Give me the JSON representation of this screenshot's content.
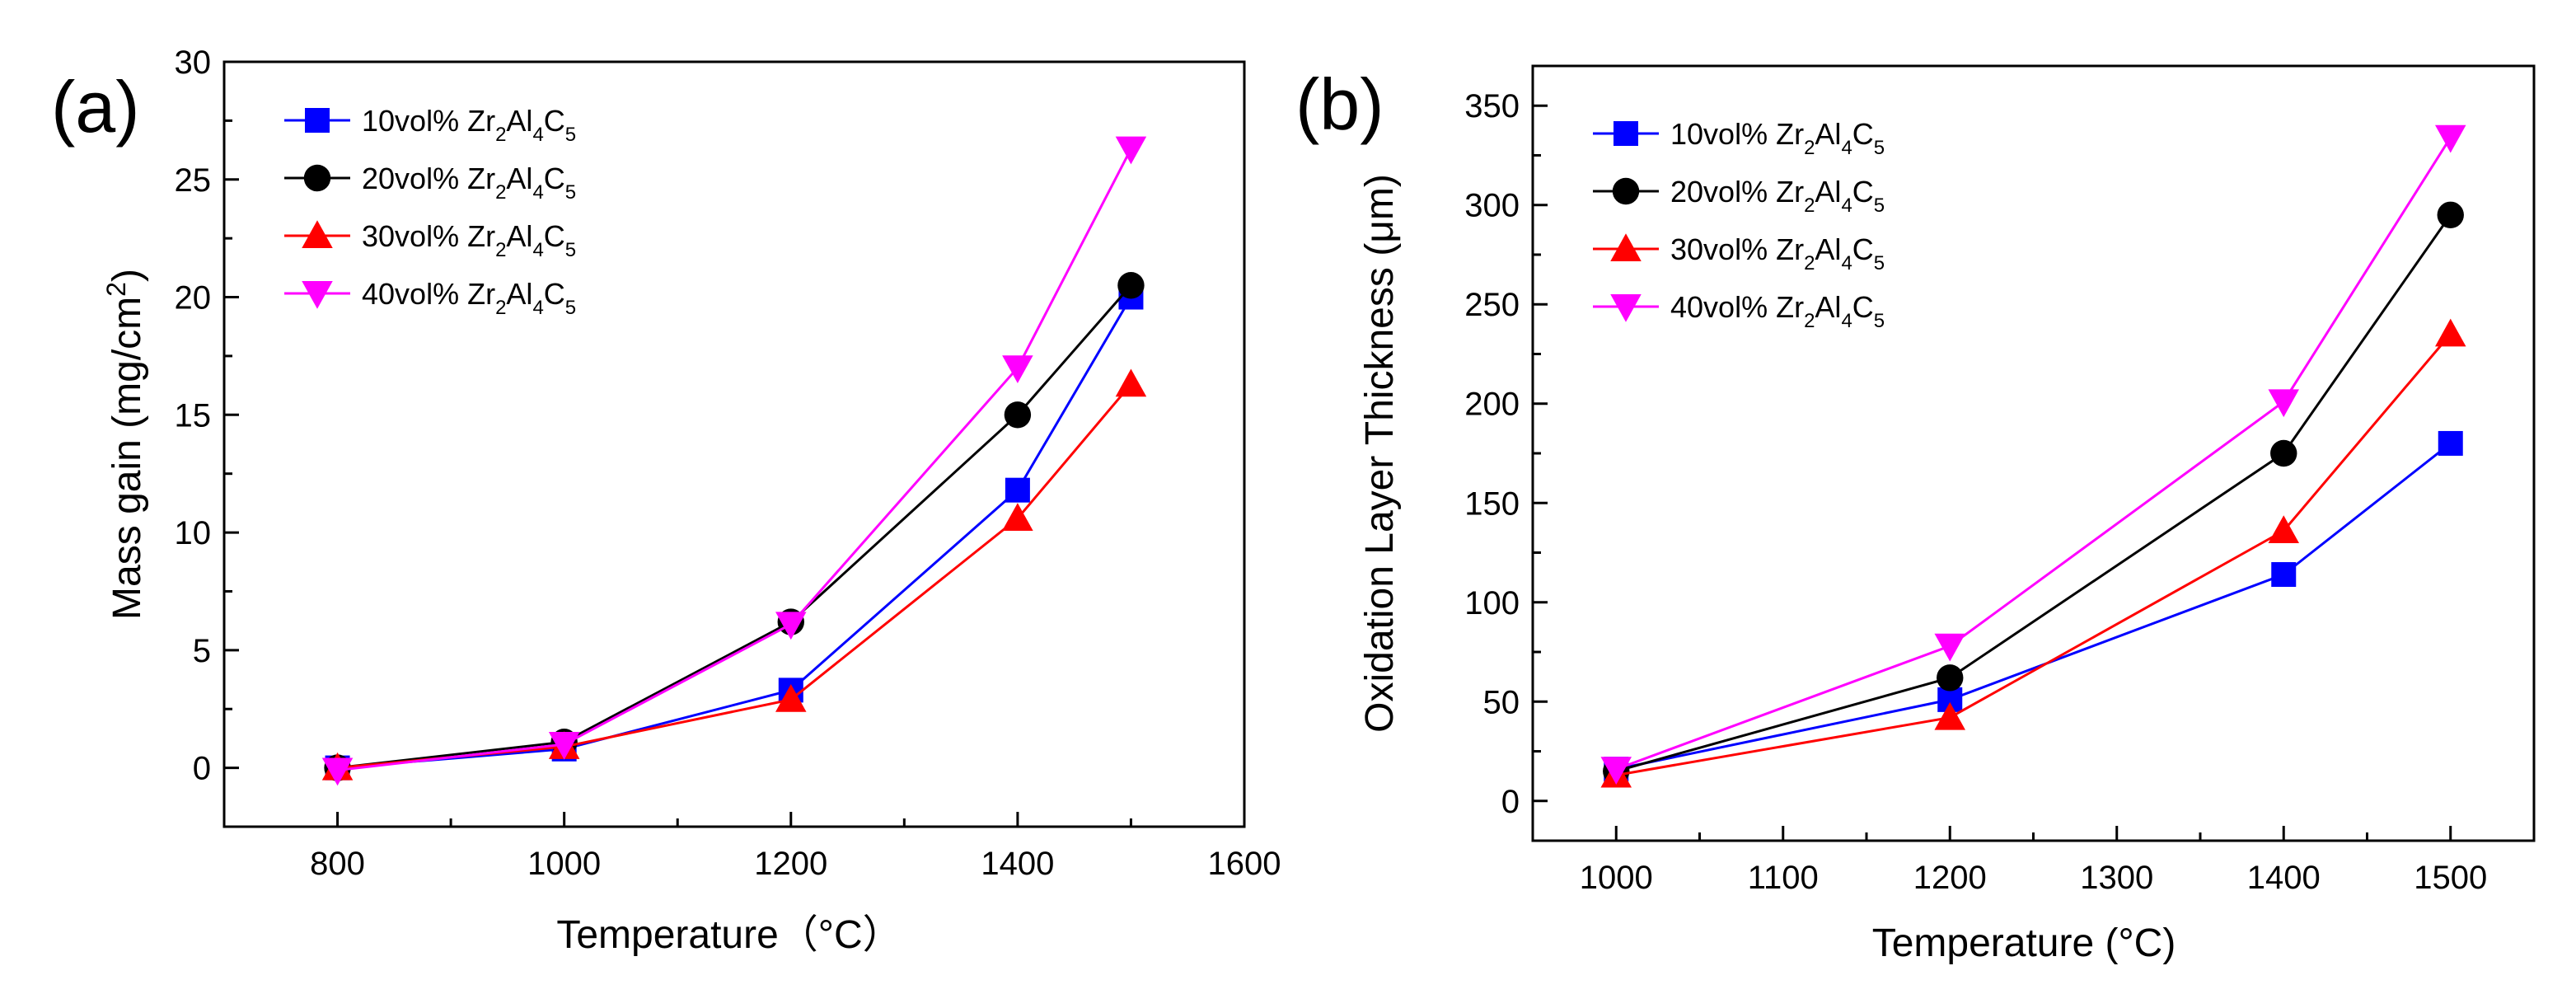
{
  "chart_data": [
    {
      "panel": "(a)",
      "type": "line",
      "xlabel": "Temperature（°C）",
      "ylabel": "Mass gain (mg/cm²)",
      "ylabel_parts": {
        "main": "Mass gain (mg/cm",
        "sup": "2",
        "tail": ")"
      },
      "xlim": [
        700,
        1600
      ],
      "ylim": [
        -2.5,
        30
      ],
      "xticks": [
        800,
        1000,
        1200,
        1400,
        1600
      ],
      "yticks": [
        0,
        5,
        10,
        15,
        20,
        25,
        30
      ],
      "x": [
        800,
        1000,
        1200,
        1400,
        1500
      ],
      "legend_position": "top-left",
      "series": [
        {
          "name": "10vol% Zr2Al4C5",
          "prefix": "10vol% ",
          "color": "#0000ff",
          "marker": "square",
          "values": [
            0,
            0.8,
            3.3,
            11.8,
            20.0
          ]
        },
        {
          "name": "20vol% Zr2Al4C5",
          "prefix": "20vol% ",
          "color": "#000000",
          "marker": "circle",
          "values": [
            0,
            1.1,
            6.2,
            15.0,
            20.5
          ]
        },
        {
          "name": "30vol% Zr2Al4C5",
          "prefix": "30vol% ",
          "color": "#ff0000",
          "marker": "triangle-up",
          "values": [
            0,
            0.9,
            2.9,
            10.6,
            16.3
          ]
        },
        {
          "name": "40vol% Zr2Al4C5",
          "prefix": "40vol% ",
          "color": "#ff00ff",
          "marker": "triangle-down",
          "values": [
            -0.1,
            1.0,
            6.1,
            17.0,
            26.3
          ]
        }
      ]
    },
    {
      "panel": "(b)",
      "type": "line",
      "xlabel": "Temperature (°C)",
      "ylabel": "Oxidation Layer Thickness (μm)",
      "ylabel_parts": {
        "main": "Oxidation Layer Thickness (μm)",
        "sup": "",
        "tail": ""
      },
      "xlim": [
        950,
        1550
      ],
      "ylim": [
        -20,
        370
      ],
      "xticks": [
        1000,
        1100,
        1200,
        1300,
        1400,
        1500
      ],
      "yticks": [
        0,
        50,
        100,
        150,
        200,
        250,
        300,
        350
      ],
      "x": [
        1000,
        1200,
        1400,
        1500
      ],
      "legend_position": "top-left",
      "series": [
        {
          "name": "10vol% Zr2Al4C5",
          "prefix": "10vol% ",
          "color": "#0000ff",
          "marker": "square",
          "values": [
            16,
            51,
            114,
            180
          ]
        },
        {
          "name": "20vol% Zr2Al4C5",
          "prefix": "20vol% ",
          "color": "#000000",
          "marker": "circle",
          "values": [
            15,
            62,
            175,
            295
          ]
        },
        {
          "name": "30vol% Zr2Al4C5",
          "prefix": "30vol% ",
          "color": "#ff0000",
          "marker": "triangle-up",
          "values": [
            13,
            42,
            136,
            235
          ]
        },
        {
          "name": "40vol% Zr2Al4C5",
          "prefix": "40vol% ",
          "color": "#ff00ff",
          "marker": "triangle-down",
          "values": [
            16,
            78,
            201,
            334
          ]
        }
      ]
    }
  ]
}
